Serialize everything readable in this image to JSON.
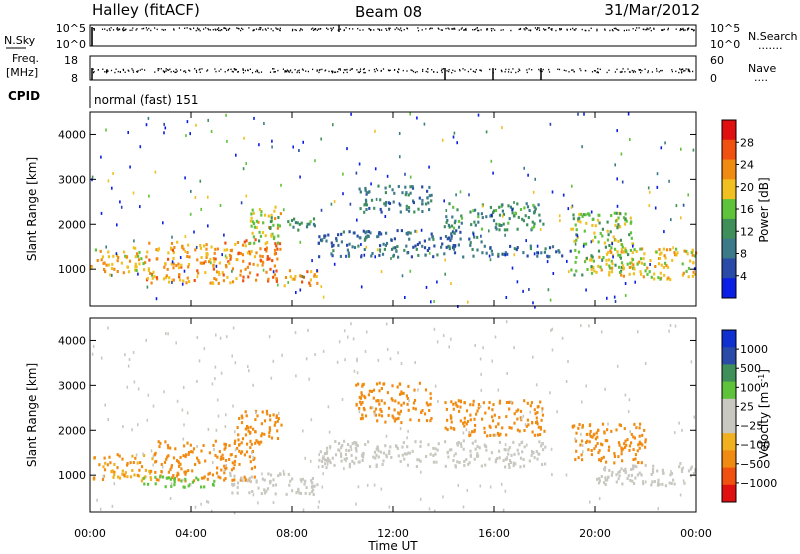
{
  "header": {
    "station": "Halley (fitACF)",
    "beam": "Beam 08",
    "date": "31/Mar/2012"
  },
  "panel_labels": {
    "nsky": "N.Sky",
    "nsearch": "N.Search",
    "freq_line1": "Freq.",
    "freq_line2": "[MHz]",
    "nave": "Nave",
    "cpid": "CPID",
    "cpid_text": "normal (fast) 151",
    "nsky_ticks": [
      "10^5",
      "10^0"
    ],
    "nsearch_ticks": [
      "10^5",
      "10^0"
    ],
    "freq_ticks": [
      "18",
      "8"
    ],
    "nave_ticks": [
      "60",
      "0"
    ]
  },
  "colors": {
    "power_scale": [
      "#0a1ee6",
      "#2a4aa8",
      "#3c7a8a",
      "#3e8f5a",
      "#5ec23a",
      "#f0c020",
      "#f08a10",
      "#f05010",
      "#e01010"
    ],
    "velocity_scale": [
      "#e01010",
      "#f05010",
      "#f08a10",
      "#f0b020",
      "#c8c8c0",
      "#c8c8c0",
      "#5ec23a",
      "#3e8f5a",
      "#2a4aa8",
      "#1030d0"
    ]
  },
  "chart_data": [
    {
      "type": "heatmap",
      "quantity": "Power",
      "xlabel": "Time UT",
      "ylabel": "Slant Range [km]",
      "x_ticks": [
        "00:00",
        "04:00",
        "08:00",
        "12:00",
        "16:00",
        "20:00",
        "00:00"
      ],
      "xlim_hours": [
        0,
        24
      ],
      "ylim_km": [
        180,
        4500
      ],
      "y_ticks": [
        1000,
        2000,
        3000,
        4000
      ],
      "colorbar_label": "Power [dB]",
      "colorbar_ticks": [
        4,
        8,
        12,
        16,
        20,
        24,
        28
      ],
      "colorbar_range": [
        0,
        32
      ],
      "regions": [
        {
          "t0": 0.0,
          "t1": 2.2,
          "r0": 900,
          "r1": 1500,
          "level": 20
        },
        {
          "t0": 2.2,
          "t1": 5.6,
          "r0": 700,
          "r1": 1650,
          "level": 22
        },
        {
          "t0": 5.6,
          "t1": 7.5,
          "r0": 750,
          "r1": 1700,
          "level": 24
        },
        {
          "t0": 6.3,
          "t1": 7.6,
          "r0": 1600,
          "r1": 2450,
          "level": 18
        },
        {
          "t0": 7.5,
          "t1": 9.0,
          "r0": 650,
          "r1": 1000,
          "level": 22
        },
        {
          "t0": 7.0,
          "t1": 9.0,
          "r0": 1900,
          "r1": 2200,
          "level": 12
        },
        {
          "t0": 9.0,
          "t1": 15.5,
          "r0": 1300,
          "r1": 1900,
          "level": 8
        },
        {
          "t0": 10.5,
          "t1": 13.5,
          "r0": 2300,
          "r1": 2900,
          "level": 10
        },
        {
          "t0": 14.0,
          "t1": 18.0,
          "r0": 1900,
          "r1": 2500,
          "level": 12
        },
        {
          "t0": 15.5,
          "t1": 19.0,
          "r0": 1300,
          "r1": 1550,
          "level": 8
        },
        {
          "t0": 19.0,
          "t1": 21.5,
          "r0": 900,
          "r1": 2300,
          "level": 16
        },
        {
          "t0": 20.0,
          "t1": 24.0,
          "r0": 800,
          "r1": 1500,
          "level": 20
        }
      ]
    },
    {
      "type": "heatmap",
      "quantity": "Velocity",
      "xlabel": "Time UT",
      "ylabel": "Slant Range [km]",
      "x_ticks": [
        "00:00",
        "04:00",
        "08:00",
        "12:00",
        "16:00",
        "20:00",
        "00:00"
      ],
      "xlim_hours": [
        0,
        24
      ],
      "ylim_km": [
        180,
        4500
      ],
      "y_ticks": [
        1000,
        2000,
        3000,
        4000
      ],
      "colorbar_label": "Velocity [m s^-1]",
      "colorbar_ticks": [
        "1000",
        "500",
        "100",
        "25",
        "−25",
        "−100",
        "−500",
        "−1000"
      ],
      "regions": [
        {
          "t0": 0.0,
          "t1": 2.5,
          "r0": 900,
          "r1": 1500,
          "level": -100
        },
        {
          "t0": 2.5,
          "t1": 6.5,
          "r0": 900,
          "r1": 1800,
          "level": -300
        },
        {
          "t0": 5.8,
          "t1": 7.6,
          "r0": 1700,
          "r1": 2500,
          "level": -150
        },
        {
          "t0": 2.0,
          "t1": 5.0,
          "r0": 750,
          "r1": 1000,
          "level": 80
        },
        {
          "t0": 5.5,
          "t1": 9.0,
          "r0": 600,
          "r1": 1100,
          "level": 0
        },
        {
          "t0": 9.0,
          "t1": 18.0,
          "r0": 1200,
          "r1": 1800,
          "level": 0
        },
        {
          "t0": 10.5,
          "t1": 13.5,
          "r0": 2200,
          "r1": 3100,
          "level": -200
        },
        {
          "t0": 14.0,
          "t1": 18.0,
          "r0": 1900,
          "r1": 2700,
          "level": -150
        },
        {
          "t0": 19.0,
          "t1": 22.0,
          "r0": 1300,
          "r1": 2200,
          "level": -300
        },
        {
          "t0": 20.0,
          "t1": 24.0,
          "r0": 800,
          "r1": 1300,
          "level": 0
        }
      ]
    }
  ]
}
